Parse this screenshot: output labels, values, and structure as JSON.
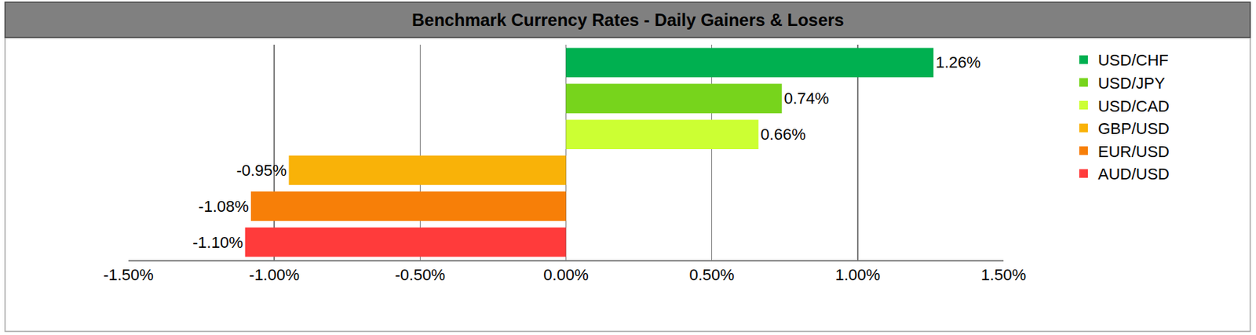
{
  "chart_data": {
    "type": "bar",
    "title": "Benchmark Currency Rates - Daily Gainers & Losers",
    "orientation": "horizontal",
    "categories": [
      "USD/CHF",
      "USD/JPY",
      "USD/CAD",
      "GBP/USD",
      "EUR/USD",
      "AUD/USD"
    ],
    "values": [
      1.26,
      0.74,
      0.66,
      -0.95,
      -1.08,
      -1.1
    ],
    "value_labels": [
      "1.26%",
      "0.74%",
      "0.66%",
      "-0.95%",
      "-1.08%",
      "-1.10%"
    ],
    "colors": [
      "#00b050",
      "#77d41c",
      "#ccff33",
      "#f9b208",
      "#f77f08",
      "#ff3b3b"
    ],
    "xlim": [
      -1.5,
      1.5
    ],
    "xticks": [
      {
        "value": -1.5,
        "label": "-1.50%"
      },
      {
        "value": -1.0,
        "label": "-1.00%"
      },
      {
        "value": -0.5,
        "label": "-0.50%"
      },
      {
        "value": 0,
        "label": "0.00%"
      },
      {
        "value": 0.5,
        "label": "0.50%"
      },
      {
        "value": 1.0,
        "label": "1.00%"
      },
      {
        "value": 1.5,
        "label": "1.50%"
      }
    ],
    "grid": true,
    "legend": "right",
    "data_labels": true,
    "tick_labels": "x"
  }
}
